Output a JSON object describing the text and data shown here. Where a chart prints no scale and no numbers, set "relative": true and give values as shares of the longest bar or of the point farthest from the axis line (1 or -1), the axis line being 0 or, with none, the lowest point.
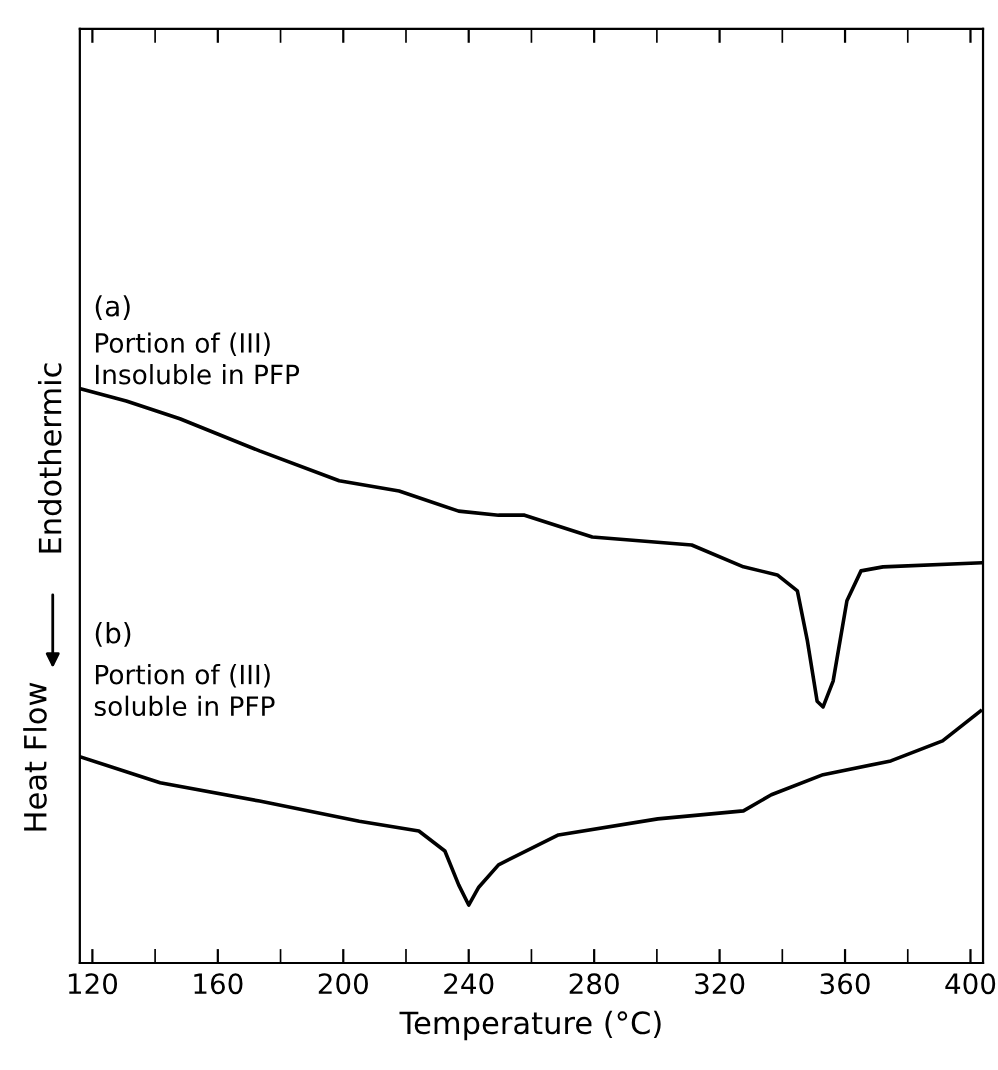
{
  "chart_data": {
    "type": "line",
    "relative": true,
    "xlabel": "Temperature (°C)",
    "ylabel": "Heat Flow",
    "xlim": [
      116,
      404
    ],
    "xticks": [
      120,
      {
        "value": 140,
        "label": null
      },
      160,
      {
        "value": 180,
        "label": null
      },
      200,
      {
        "value": 220,
        "label": null
      },
      240,
      {
        "value": 260,
        "label": null
      },
      280,
      {
        "value": 300,
        "label": null
      },
      320,
      {
        "value": 340,
        "label": null
      },
      360,
      {
        "value": 380,
        "label": null
      },
      400
    ],
    "grid": false,
    "line_style": "solid",
    "marker": "none",
    "annotations": [
      "(a)",
      "Portion of (III)\nInsoluble in PFP",
      "(b)",
      "Portion of (III)\nsoluble in PFP",
      "Endothermic"
    ],
    "series": [
      {
        "color": "#000000",
        "x": [
          116.2,
          130.8,
          147.9,
          173.3,
          198.7,
          217.8,
          236.8,
          249.5,
          257.8,
          279.4,
          311.1,
          327.6,
          338.4,
          344.8,
          348,
          351.1,
          353,
          356.2,
          360.6,
          365.1,
          372.1,
          403.2
        ],
        "values": [
          1.0,
          0.979,
          0.948,
          0.892,
          0.84,
          0.822,
          0.787,
          0.78,
          0.78,
          0.742,
          0.728,
          0.69,
          0.676,
          0.648,
          0.561,
          0.456,
          0.446,
          0.491,
          0.631,
          0.683,
          0.69,
          0.697
        ]
      },
      {
        "color": "#000000",
        "x": [
          116.2,
          141.6,
          173.3,
          205.1,
          224.1,
          232.4,
          236.8,
          240,
          243.2,
          249.5,
          268.6,
          300.3,
          327.6,
          336.5,
          353,
          374.6,
          391.1,
          403.2
        ],
        "values": [
          0.359,
          0.314,
          0.282,
          0.247,
          0.23,
          0.195,
          0.136,
          0.101,
          0.132,
          0.171,
          0.223,
          0.251,
          0.265,
          0.293,
          0.328,
          0.352,
          0.387,
          0.439
        ]
      }
    ]
  }
}
